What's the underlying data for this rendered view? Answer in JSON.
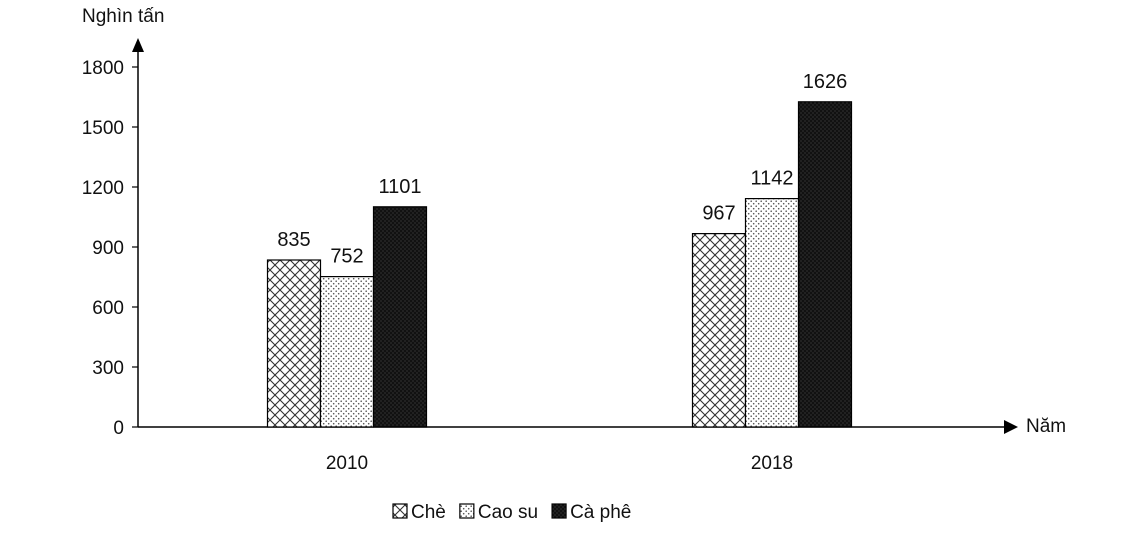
{
  "chart_data": {
    "type": "bar",
    "categories": [
      "2010",
      "2018"
    ],
    "series": [
      {
        "name": "Chè",
        "values": [
          835,
          967
        ],
        "pattern": "crosshatch"
      },
      {
        "name": "Cao su",
        "values": [
          752,
          1142
        ],
        "pattern": "dots"
      },
      {
        "name": "Cà phê",
        "values": [
          1101,
          1626
        ],
        "pattern": "dense"
      }
    ],
    "ylabel": "Nghìn tấn",
    "xlabel": "Năm",
    "ylim": [
      0,
      1800
    ],
    "yticks": [
      0,
      300,
      600,
      900,
      1200,
      1500,
      1800
    ],
    "legend_position": "bottom-center",
    "grid": false,
    "bar_color": "#000000"
  }
}
